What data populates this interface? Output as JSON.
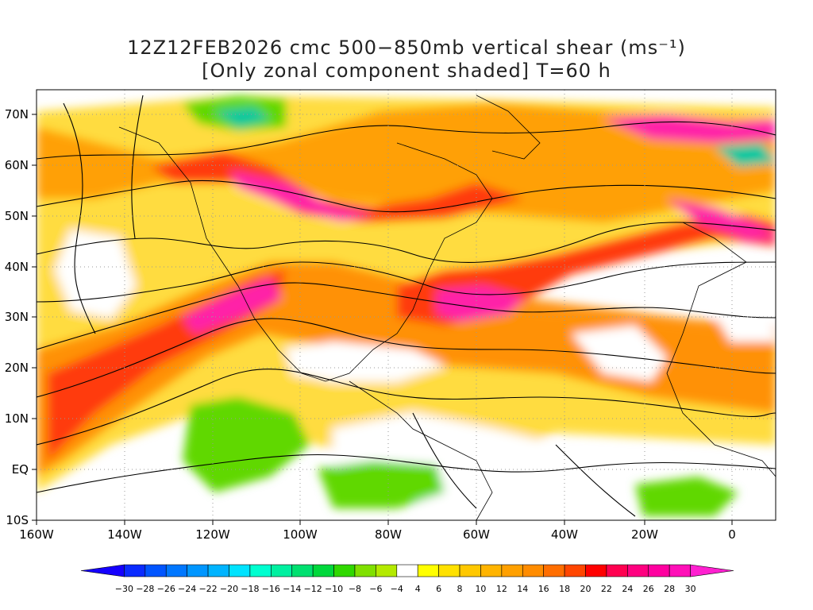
{
  "title_line1": "12Z12FEB2026 cmc 500−850mb vertical shear (ms⁻¹)",
  "title_line2": "[Only zonal component shaded] T=60 h",
  "lat_labels": [
    "70N",
    "60N",
    "50N",
    "40N",
    "30N",
    "20N",
    "10N",
    "EQ",
    "10S"
  ],
  "lon_labels": [
    "160W",
    "140W",
    "120W",
    "100W",
    "80W",
    "60W",
    "40W",
    "20W",
    "0"
  ],
  "colorbar": {
    "ticks": [
      "−30",
      "−28",
      "−26",
      "−24",
      "−22",
      "−20",
      "−18",
      "−16",
      "−14",
      "−12",
      "−10",
      "−8",
      "−6",
      "−4",
      "4",
      "6",
      "8",
      "10",
      "12",
      "14",
      "16",
      "18",
      "20",
      "22",
      "24",
      "26",
      "28",
      "30"
    ],
    "colors": [
      "#1500ff",
      "#0a2bff",
      "#0055ff",
      "#0077ff",
      "#0096ff",
      "#00b4ff",
      "#00e3ff",
      "#00ffd0",
      "#00f0a0",
      "#00e070",
      "#00d83c",
      "#30d800",
      "#80e000",
      "#b4ea00",
      "#ffffff",
      "#ffff00",
      "#ffe100",
      "#ffc800",
      "#ffb400",
      "#ffa000",
      "#ff8c00",
      "#ff6e00",
      "#ff4600",
      "#ff0000",
      "#ff0050",
      "#ff0080",
      "#ff00a0",
      "#ff10b8",
      "#ff20d0"
    ]
  },
  "palette": {
    "zero": "#ffffff",
    "orange": "#ff9a00",
    "deep_orange": "#ff6a00",
    "red": "#ff2a1a",
    "magenta": "#ff20a8",
    "yellow": "#ffe600",
    "green": "#60d800",
    "teal": "#00c8a0"
  }
}
